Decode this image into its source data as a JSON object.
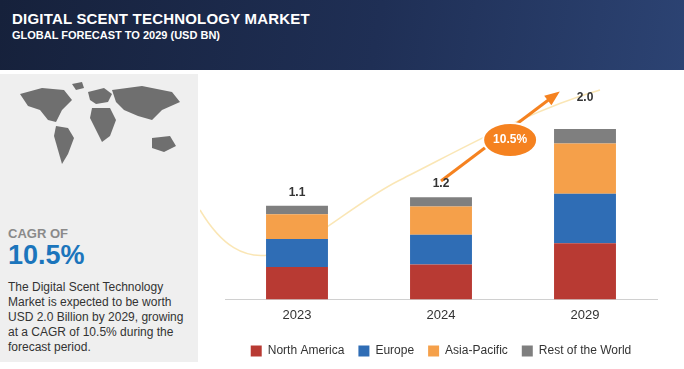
{
  "header": {
    "title": "DIGITAL SCENT TECHNOLOGY MARKET",
    "subtitle": "GLOBAL FORECAST TO 2029 (USD BN)"
  },
  "side_panel": {
    "label": "CAGR OF",
    "value": "10.5%",
    "text": "The Digital Scent Technology Market is expected to be worth USD 2.0 Billion by 2029, growing at a CAGR of 10.5% during the forecast period."
  },
  "chart_data": {
    "type": "bar",
    "stacked": true,
    "categories": [
      "2023",
      "2024",
      "2029"
    ],
    "series": [
      {
        "name": "North America",
        "color": "#b83a33",
        "values": [
          0.38,
          0.41,
          0.66
        ]
      },
      {
        "name": "Europe",
        "color": "#2f6db5",
        "values": [
          0.33,
          0.35,
          0.58
        ]
      },
      {
        "name": "Asia-Pacific",
        "color": "#f5a04a",
        "values": [
          0.29,
          0.33,
          0.59
        ]
      },
      {
        "name": "Rest of the World",
        "color": "#7f7f7f",
        "values": [
          0.1,
          0.11,
          0.17
        ]
      }
    ],
    "totals": [
      1.1,
      1.2,
      2.0
    ],
    "total_labels": [
      "1.1",
      "1.2",
      "2.0"
    ],
    "annotations": [
      "10.5%"
    ],
    "ylim": [
      0,
      2.0
    ],
    "tick_labels": "x",
    "grid": false,
    "legend": "bottom"
  }
}
